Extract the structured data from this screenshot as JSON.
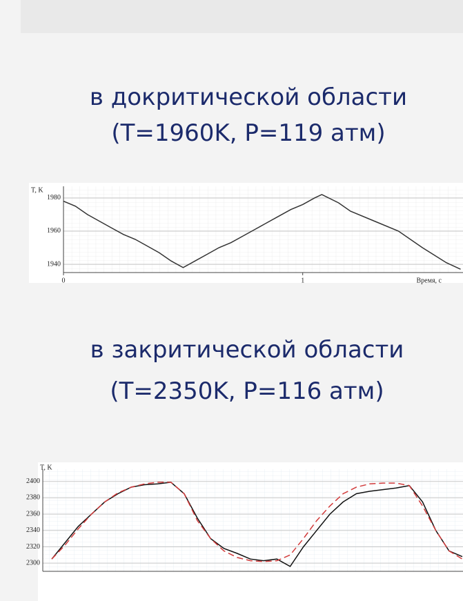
{
  "slide": {
    "headings": [
      {
        "lines": [
          "в докритической области",
          "(T=1960K, P=119 атм)"
        ]
      },
      {
        "lines": [
          "в закритической области",
          "(T=2350K, P=116 атм)"
        ]
      }
    ]
  },
  "chart_data": [
    {
      "type": "line",
      "y_label": "T, K",
      "x_label": "Время, с",
      "x": [
        0,
        0.05,
        0.1,
        0.15,
        0.2,
        0.25,
        0.3,
        0.35,
        0.4,
        0.45,
        0.5,
        0.55,
        0.6,
        0.65,
        0.7,
        0.75,
        0.8,
        0.85,
        0.9,
        0.95,
        1.0,
        1.05,
        1.08,
        1.15,
        1.2,
        1.3,
        1.4,
        1.5,
        1.6,
        1.66
      ],
      "series": [
        {
          "color": "#333333",
          "linestyle": "solid",
          "values": [
            1978,
            1975,
            1970,
            1966,
            1962,
            1958,
            1955,
            1951,
            1947,
            1942,
            1938,
            1942,
            1946,
            1950,
            1953,
            1957,
            1961,
            1965,
            1969,
            1973,
            1976,
            1980,
            1982,
            1977,
            1972,
            1966,
            1960,
            1950,
            1941,
            1937
          ]
        }
      ],
      "xlim": [
        0,
        1.67
      ],
      "xticks": [
        0,
        1
      ],
      "ylim": [
        1935,
        1987
      ],
      "yticks": [
        1940,
        1960,
        1980
      ],
      "grid": true
    },
    {
      "type": "line",
      "y_label": "T, K",
      "series": [
        {
          "color": "#111111",
          "linestyle": "solid",
          "values": [
            2305,
            2325,
            2345,
            2360,
            2375,
            2385,
            2393,
            2396,
            2397,
            2399,
            2385,
            2355,
            2330,
            2318,
            2312,
            2305,
            2303,
            2305,
            2296,
            2320,
            2340,
            2360,
            2375,
            2385,
            2388,
            2390,
            2392,
            2395,
            2375,
            2340,
            2315,
            2308
          ]
        },
        {
          "color": "#d23a3a",
          "linestyle": "dashed",
          "values": [
            2305,
            2322,
            2342,
            2360,
            2375,
            2386,
            2393,
            2397,
            2399,
            2399,
            2385,
            2352,
            2330,
            2315,
            2307,
            2303,
            2302,
            2303,
            2310,
            2330,
            2352,
            2370,
            2385,
            2393,
            2397,
            2398,
            2398,
            2395,
            2370,
            2340,
            2315,
            2305
          ]
        }
      ],
      "ylim": [
        2290,
        2415
      ],
      "yticks": [
        2300,
        2320,
        2340,
        2360,
        2380,
        2400
      ],
      "grid": true
    }
  ]
}
